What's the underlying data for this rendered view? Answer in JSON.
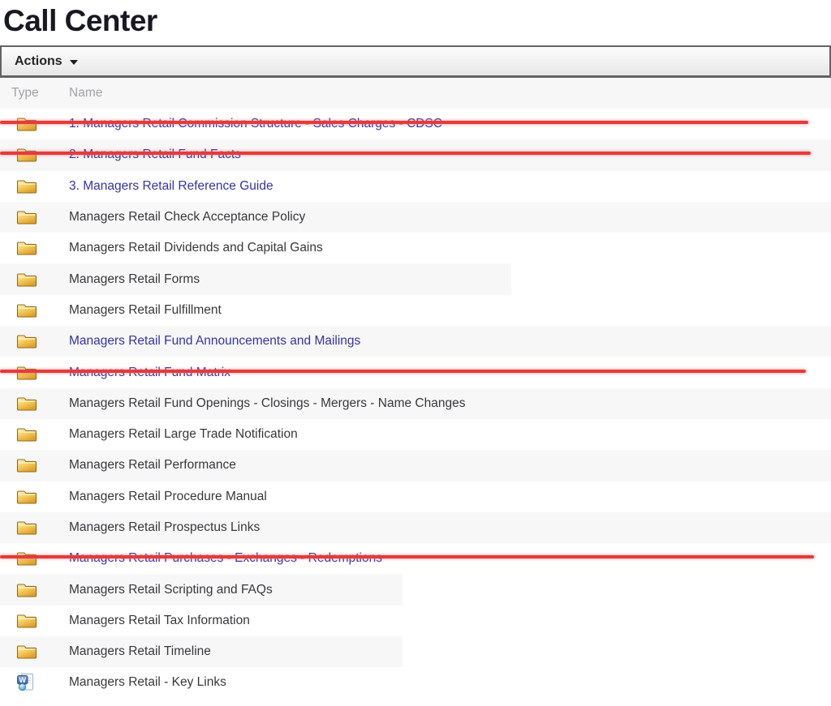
{
  "page_title": "Call Center",
  "toolbar": {
    "actions_label": "Actions",
    "dropdown_icon": "caret-down"
  },
  "table": {
    "columns": {
      "type": "Type",
      "name": "Name"
    },
    "rows": [
      {
        "name": "1. Managers Retail Commission Structure - Sales Charges - CDSC",
        "icon": "folder",
        "blue": true,
        "struck": true,
        "strike_width": 996,
        "shade_width": null
      },
      {
        "name": "2. Managers Retail Fund Facts",
        "icon": "folder",
        "blue": true,
        "struck": true,
        "strike_width": 999,
        "shade_width": 1024
      },
      {
        "name": "3. Managers Retail Reference Guide",
        "icon": "folder",
        "blue": true,
        "struck": false,
        "strike_width": null,
        "shade_width": null
      },
      {
        "name": "Managers Retail Check Acceptance Policy",
        "icon": "folder",
        "blue": false,
        "struck": false,
        "strike_width": null,
        "shade_width": 1024
      },
      {
        "name": "Managers Retail Dividends and Capital Gains",
        "icon": "folder",
        "blue": false,
        "struck": false,
        "strike_width": null,
        "shade_width": null
      },
      {
        "name": "Managers Retail Forms",
        "icon": "folder",
        "blue": false,
        "struck": false,
        "strike_width": null,
        "shade_width": 630
      },
      {
        "name": "Managers Retail Fulfillment",
        "icon": "folder",
        "blue": false,
        "struck": false,
        "strike_width": null,
        "shade_width": null
      },
      {
        "name": "Managers Retail Fund Announcements and Mailings",
        "icon": "folder",
        "blue": true,
        "struck": false,
        "strike_width": null,
        "shade_width": 1024
      },
      {
        "name": "Managers Retail Fund Matrix",
        "icon": "folder",
        "blue": true,
        "struck": true,
        "strike_width": 993,
        "shade_width": null
      },
      {
        "name": "Managers Retail Fund Openings - Closings - Mergers - Name Changes",
        "icon": "folder",
        "blue": false,
        "struck": false,
        "strike_width": null,
        "shade_width": 1024
      },
      {
        "name": "Managers Retail Large Trade Notification",
        "icon": "folder",
        "blue": false,
        "struck": false,
        "strike_width": null,
        "shade_width": null
      },
      {
        "name": "Managers Retail Performance",
        "icon": "folder",
        "blue": false,
        "struck": false,
        "strike_width": null,
        "shade_width": 1024
      },
      {
        "name": "Managers Retail Procedure Manual",
        "icon": "folder",
        "blue": false,
        "struck": false,
        "strike_width": null,
        "shade_width": null
      },
      {
        "name": "Managers Retail Prospectus Links",
        "icon": "folder",
        "blue": false,
        "struck": false,
        "strike_width": null,
        "shade_width": 1024
      },
      {
        "name": "Managers Retail Purchases - Exchanges - Redemptions",
        "icon": "folder",
        "blue": true,
        "struck": true,
        "strike_width": 1003,
        "shade_width": null
      },
      {
        "name": "Managers Retail Scripting and FAQs",
        "icon": "folder",
        "blue": false,
        "struck": false,
        "strike_width": null,
        "shade_width": 496
      },
      {
        "name": "Managers Retail Tax Information",
        "icon": "folder",
        "blue": false,
        "struck": false,
        "strike_width": null,
        "shade_width": null
      },
      {
        "name": "Managers Retail Timeline",
        "icon": "folder",
        "blue": false,
        "struck": false,
        "strike_width": null,
        "shade_width": 496
      },
      {
        "name": "Managers Retail - Key Links",
        "icon": "word-document",
        "blue": false,
        "struck": false,
        "strike_width": null,
        "shade_width": null
      }
    ]
  },
  "colors": {
    "link_blue": "#3434a4",
    "row_text": "#38383a",
    "strike_red": "#e43b3b",
    "alt_row_bg": "#f7f7f8",
    "header_text": "#a3a3a6"
  }
}
